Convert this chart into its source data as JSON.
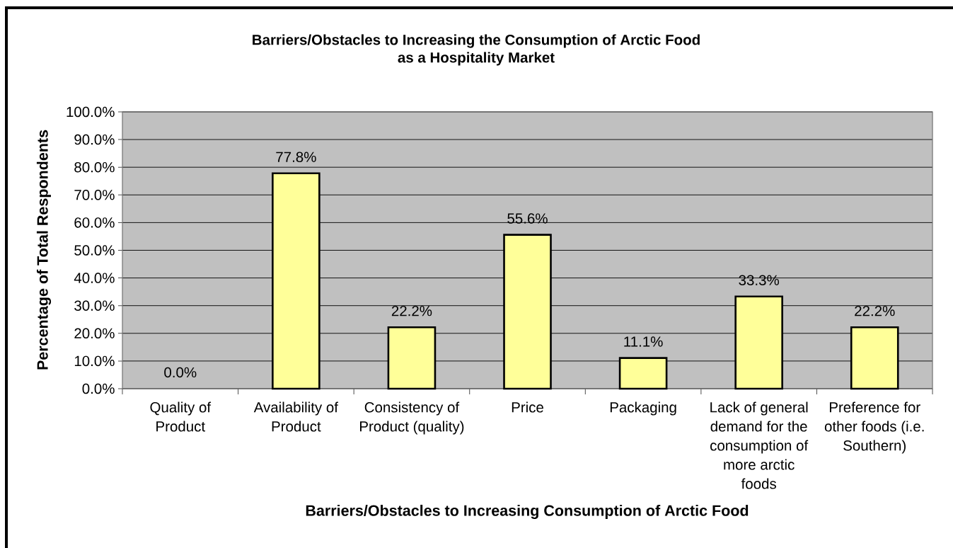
{
  "chart_data": {
    "type": "bar",
    "title": "Barriers/Obstacles to Increasing the Consumption of Arctic Food as a Hospitality Market",
    "xlabel": "Barriers/Obstacles to Increasing Consumption of Arctic Food",
    "ylabel": "Percentage of Total Respondents",
    "categories": [
      "Quality of Product",
      "Availability of Product",
      "Consistency of Product (quality)",
      "Price",
      "Packaging",
      "Lack of general demand for the consumption of more arctic foods",
      "Preference for other foods (i.e. Southern)"
    ],
    "values": [
      0.0,
      77.8,
      22.2,
      55.6,
      11.1,
      33.3,
      22.2
    ],
    "color": "#ffff99",
    "value_labels": [
      "0.0%",
      "77.8%",
      "22.2%",
      "55.6%",
      "11.1%",
      "33.3%",
      "22.2%"
    ],
    "ylim": [
      0,
      100
    ],
    "yticks": [
      {
        "value": 0,
        "label": "0.0%"
      },
      {
        "value": 10,
        "label": "10.0%"
      },
      {
        "value": 20,
        "label": "20.0%"
      },
      {
        "value": 30,
        "label": "30.0%"
      },
      {
        "value": 40,
        "label": "40.0%"
      },
      {
        "value": 50,
        "label": "50.0%"
      },
      {
        "value": 60,
        "label": "60.0%"
      },
      {
        "value": 70,
        "label": "70.0%"
      },
      {
        "value": 80,
        "label": "80.0%"
      },
      {
        "value": 90,
        "label": "90.0%"
      },
      {
        "value": 100,
        "label": "100.0%"
      }
    ],
    "grid": "y"
  }
}
